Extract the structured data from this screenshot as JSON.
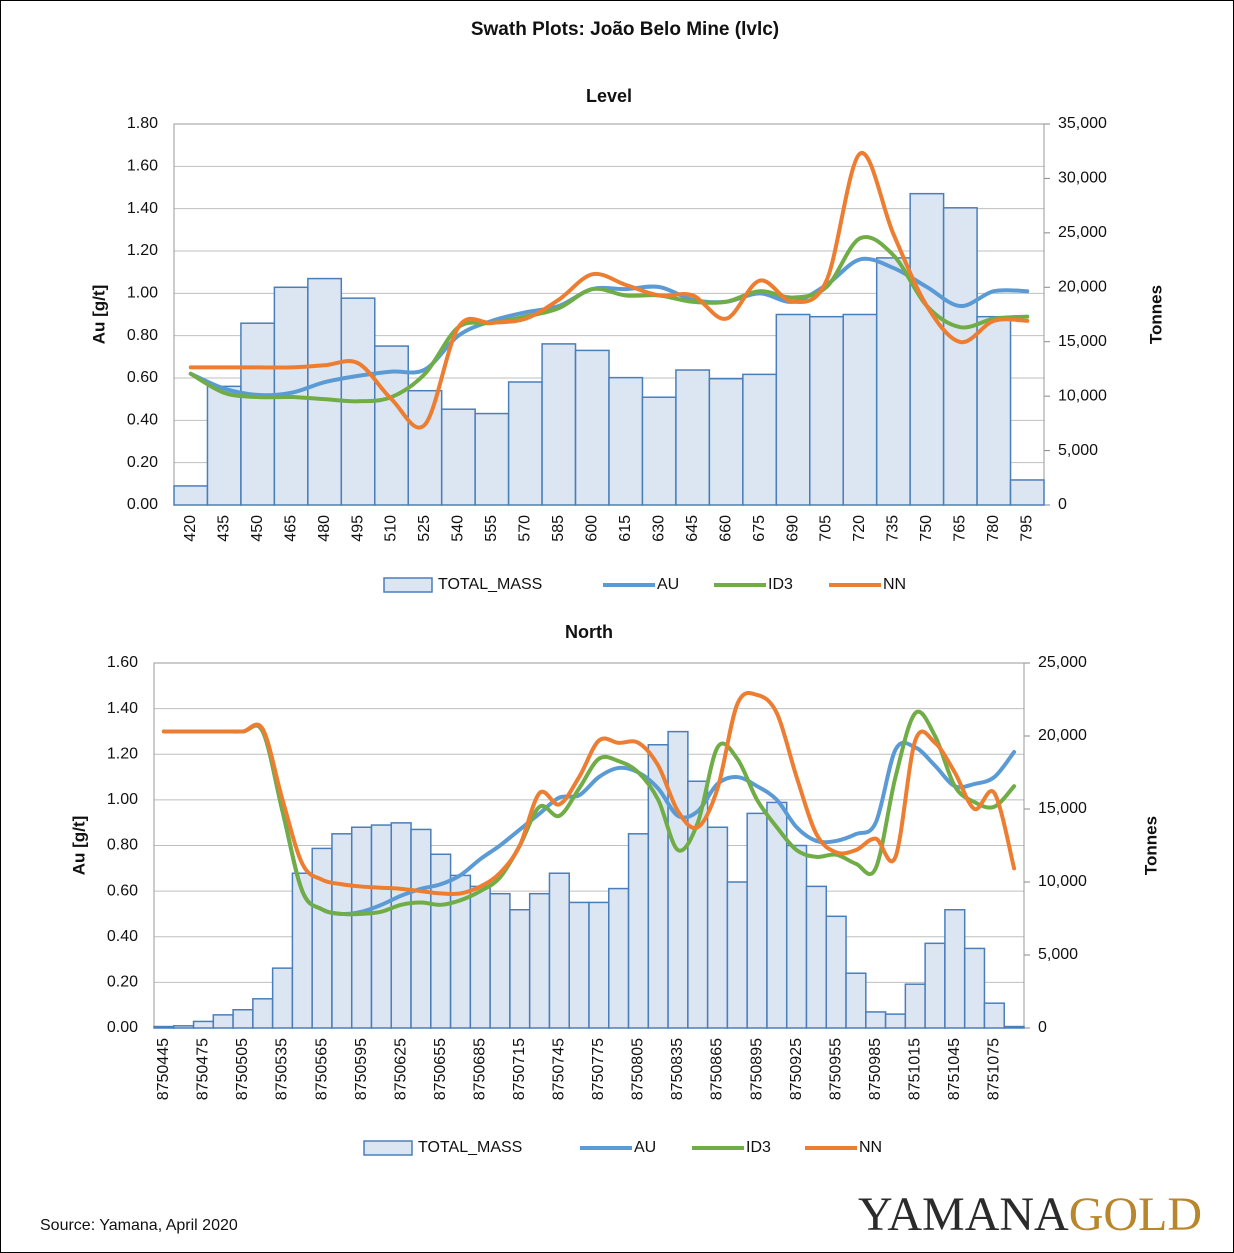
{
  "title": "Swath Plots: João Belo Mine (lvlc)",
  "source": "Source: Yamana, April 2020",
  "logo": {
    "part1": "YAMANA",
    "part2": "GOLD"
  },
  "chart_data": [
    {
      "type": "bar_line",
      "title": "Level",
      "y_label": "Au [g/t]",
      "y2_label": "Tonnes",
      "categories": [
        "420",
        "435",
        "450",
        "465",
        "480",
        "495",
        "510",
        "525",
        "540",
        "555",
        "570",
        "585",
        "600",
        "615",
        "630",
        "645",
        "660",
        "675",
        "690",
        "705",
        "720",
        "735",
        "750",
        "765",
        "780",
        "795"
      ],
      "ylim": [
        0,
        1.8
      ],
      "yticks": [
        {
          "value": 0,
          "label": "0.00"
        },
        {
          "value": 0.2,
          "label": "0.20"
        },
        {
          "value": 0.4,
          "label": "0.40"
        },
        {
          "value": 0.6,
          "label": "0.60"
        },
        {
          "value": 0.8,
          "label": "0.80"
        },
        {
          "value": 1.0,
          "label": "1.00"
        },
        {
          "value": 1.2,
          "label": "1.20"
        },
        {
          "value": 1.4,
          "label": "1.40"
        },
        {
          "value": 1.6,
          "label": "1.60"
        },
        {
          "value": 1.8,
          "label": "1.80"
        }
      ],
      "y2lim": [
        0,
        35000
      ],
      "y2ticks": [
        0,
        {
          "value": 5000,
          "label": "5,000"
        },
        {
          "value": 10000,
          "label": "10,000"
        },
        {
          "value": 15000,
          "label": "15,000"
        },
        {
          "value": 20000,
          "label": "20,000"
        },
        {
          "value": 25000,
          "label": "25,000"
        },
        {
          "value": 30000,
          "label": "30,000"
        },
        {
          "value": 35000,
          "label": "35,000"
        }
      ],
      "grid": true,
      "legend": "bottom",
      "series": [
        {
          "name": "TOTAL_MASS",
          "type": "bar",
          "axis": "y2",
          "color": "#dce6f2",
          "edge_color": "#4a7ebb",
          "values": [
            1750,
            10900,
            16700,
            20000,
            20800,
            19000,
            14600,
            10500,
            8800,
            8400,
            11300,
            14800,
            14200,
            11700,
            9900,
            12400,
            11600,
            12000,
            17500,
            17300,
            17500,
            22700,
            28600,
            27300,
            17300,
            2300
          ]
        },
        {
          "name": "AU",
          "type": "line",
          "color": "#5b9bd5",
          "values": [
            0.62,
            0.55,
            0.52,
            0.53,
            0.58,
            0.61,
            0.63,
            0.64,
            0.8,
            0.87,
            0.91,
            0.94,
            1.02,
            1.02,
            1.03,
            0.97,
            0.96,
            1.0,
            0.96,
            1.04,
            1.16,
            1.12,
            1.03,
            0.94,
            1.01,
            1.01
          ]
        },
        {
          "name": "ID3",
          "type": "line",
          "color": "#70ad47",
          "values": [
            0.62,
            0.53,
            0.51,
            0.51,
            0.5,
            0.49,
            0.51,
            0.62,
            0.84,
            0.86,
            0.89,
            0.93,
            1.02,
            0.99,
            0.99,
            0.96,
            0.96,
            1.01,
            0.98,
            1.03,
            1.26,
            1.18,
            0.94,
            0.84,
            0.88,
            0.89
          ]
        },
        {
          "name": "NN",
          "type": "line",
          "color": "#ed7d31",
          "values": [
            0.65,
            0.65,
            0.65,
            0.65,
            0.66,
            0.67,
            0.5,
            0.38,
            0.84,
            0.86,
            0.88,
            0.97,
            1.09,
            1.04,
            0.99,
            0.99,
            0.88,
            1.06,
            0.96,
            1.06,
            1.66,
            1.28,
            0.94,
            0.77,
            0.87,
            0.87
          ]
        }
      ]
    },
    {
      "type": "bar_line",
      "title": "North",
      "y_label": "Au [g/t]",
      "y2_label": "Tonnes",
      "categories": [
        "8750445",
        null,
        "8750475",
        null,
        "8750505",
        null,
        "8750535",
        null,
        "8750565",
        null,
        "8750595",
        null,
        "8750625",
        null,
        "8750655",
        null,
        "8750685",
        null,
        "8750715",
        null,
        "8750745",
        null,
        "8750775",
        null,
        "8750805",
        null,
        "8750835",
        null,
        "8750865",
        null,
        "8750895",
        null,
        "8750925",
        null,
        "8750955",
        null,
        "8750985",
        null,
        "8751015",
        null,
        "8751045",
        null,
        "8751075",
        null
      ],
      "ylim": [
        0,
        1.6
      ],
      "yticks": [
        {
          "value": 0,
          "label": "0.00"
        },
        {
          "value": 0.2,
          "label": "0.20"
        },
        {
          "value": 0.4,
          "label": "0.40"
        },
        {
          "value": 0.6,
          "label": "0.60"
        },
        {
          "value": 0.8,
          "label": "0.80"
        },
        {
          "value": 1.0,
          "label": "1.00"
        },
        {
          "value": 1.2,
          "label": "1.20"
        },
        {
          "value": 1.4,
          "label": "1.40"
        },
        {
          "value": 1.6,
          "label": "1.60"
        }
      ],
      "y2lim": [
        0,
        25000
      ],
      "y2ticks": [
        0,
        {
          "value": 5000,
          "label": "5,000"
        },
        {
          "value": 10000,
          "label": "10,000"
        },
        {
          "value": 15000,
          "label": "15,000"
        },
        {
          "value": 20000,
          "label": "20,000"
        },
        {
          "value": 25000,
          "label": "25,000"
        }
      ],
      "grid": true,
      "legend": "bottom",
      "series": [
        {
          "name": "TOTAL_MASS",
          "type": "bar",
          "axis": "y2",
          "color": "#dce6f2",
          "edge_color": "#4a7ebb",
          "values": [
            100,
            150,
            450,
            900,
            1250,
            2000,
            4100,
            10600,
            12300,
            13300,
            13750,
            13900,
            14050,
            13600,
            11900,
            10450,
            9700,
            9200,
            8100,
            9200,
            10600,
            8600,
            8600,
            9550,
            13300,
            19400,
            20300,
            16900,
            13750,
            10000,
            14700,
            15450,
            12500,
            9700,
            7650,
            3750,
            1100,
            950,
            3000,
            5800,
            8100,
            5450,
            1700,
            100
          ]
        },
        {
          "name": "AU",
          "type": "line",
          "color": "#5b9bd5",
          "values": [
            1.3,
            1.3,
            1.3,
            1.3,
            1.3,
            1.3,
            0.95,
            0.6,
            0.52,
            0.5,
            0.51,
            0.54,
            0.58,
            0.61,
            0.63,
            0.67,
            0.74,
            0.8,
            0.87,
            0.94,
            1.01,
            1.02,
            1.1,
            1.14,
            1.12,
            1.05,
            0.93,
            0.95,
            1.07,
            1.1,
            1.06,
            1.0,
            0.88,
            0.82,
            0.82,
            0.85,
            0.9,
            1.22,
            1.23,
            1.15,
            1.06,
            1.07,
            1.1,
            1.21
          ]
        },
        {
          "name": "ID3",
          "type": "line",
          "color": "#70ad47",
          "values": [
            1.3,
            1.3,
            1.3,
            1.3,
            1.3,
            1.3,
            0.95,
            0.6,
            0.52,
            0.5,
            0.5,
            0.51,
            0.54,
            0.55,
            0.54,
            0.56,
            0.6,
            0.66,
            0.8,
            0.97,
            0.93,
            1.05,
            1.18,
            1.17,
            1.12,
            1.0,
            0.78,
            0.9,
            1.23,
            1.18,
            1.0,
            0.88,
            0.78,
            0.75,
            0.76,
            0.72,
            0.7,
            1.1,
            1.38,
            1.28,
            1.06,
            0.99,
            0.97,
            1.06
          ]
        },
        {
          "name": "NN",
          "type": "line",
          "color": "#ed7d31",
          "values": [
            1.3,
            1.3,
            1.3,
            1.3,
            1.3,
            1.31,
            1.0,
            0.72,
            0.65,
            0.63,
            0.62,
            0.615,
            0.61,
            0.6,
            0.59,
            0.59,
            0.62,
            0.68,
            0.8,
            1.03,
            0.98,
            1.1,
            1.26,
            1.25,
            1.25,
            1.15,
            0.95,
            0.88,
            1.05,
            1.42,
            1.46,
            1.38,
            1.1,
            0.85,
            0.77,
            0.78,
            0.83,
            0.75,
            1.26,
            1.25,
            1.12,
            0.96,
            1.03,
            0.7
          ]
        }
      ]
    }
  ]
}
